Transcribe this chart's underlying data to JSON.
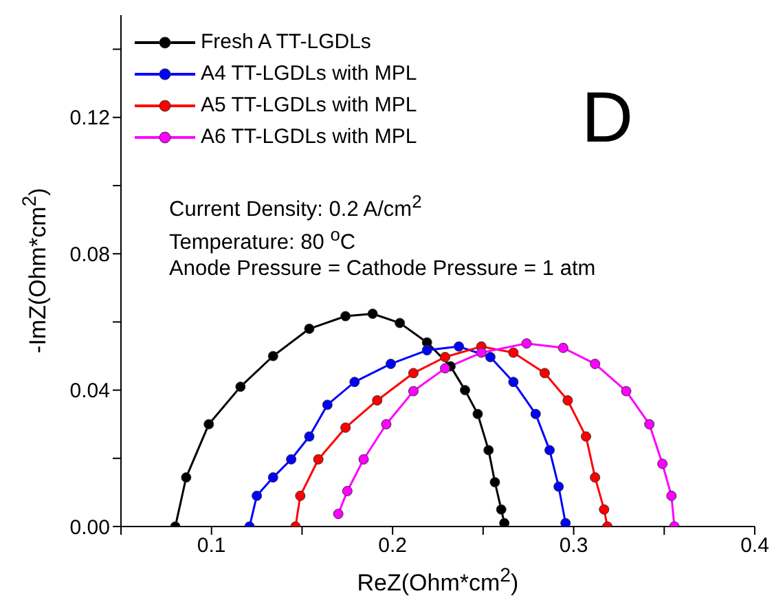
{
  "chart_data": {
    "type": "line",
    "xlabel": "ReZ(Ohm*cm$^{2}$)",
    "ylabel": "-ImZ(Ohm*cm$^{2}$)",
    "xlim": [
      0.05,
      0.4
    ],
    "xticks": [
      {
        "value": 0.05,
        "label": null
      },
      0.1,
      {
        "value": 0.15,
        "label": null
      },
      0.2,
      {
        "value": 0.25,
        "label": null
      },
      0.3,
      {
        "value": 0.35,
        "label": null
      },
      0.4
    ],
    "ylim": [
      0,
      0.15
    ],
    "yticks": [
      "0.00",
      {
        "value": 0.02,
        "label": null
      },
      0.04,
      {
        "value": 0.06,
        "label": null
      },
      0.08,
      {
        "value": 0.1,
        "label": null
      },
      0.12,
      {
        "value": 0.14,
        "label": null
      }
    ],
    "legend": "top left",
    "marker": "circle",
    "line_style": "solid",
    "grid": false,
    "annotations": [
      "D",
      "Current Density: 0.2 A/cm$^{2}$",
      "Temperature: 80 $^{o}$C",
      "Anode Pressure = Cathode Pressure = 1 atm"
    ],
    "series": [
      {
        "name": "Fresh A TT-LGDLs",
        "color": "#000000",
        "x": [
          0.08,
          0.086,
          0.0985,
          0.116,
          0.134,
          0.154,
          0.174,
          0.189,
          0.204,
          0.219,
          0.232,
          0.24,
          0.247,
          0.253,
          0.2565,
          0.26,
          0.2617
        ],
        "values": [
          0.0,
          0.0144,
          0.03,
          0.041,
          0.05,
          0.058,
          0.0617,
          0.0624,
          0.0597,
          0.054,
          0.047,
          0.04,
          0.033,
          0.0224,
          0.013,
          0.005,
          0.001
        ]
      },
      {
        "name": "A4 TT-LGDLs with MPL",
        "color": "#0000ff",
        "x": [
          0.121,
          0.125,
          0.134,
          0.144,
          0.154,
          0.164,
          0.179,
          0.199,
          0.219,
          0.2366,
          0.254,
          0.2667,
          0.279,
          0.2867,
          0.2917,
          0.2955
        ],
        "values": [
          0.0,
          0.009,
          0.0144,
          0.0197,
          0.0264,
          0.0357,
          0.0424,
          0.0477,
          0.0517,
          0.0528,
          0.0497,
          0.0424,
          0.033,
          0.0224,
          0.0117,
          0.001
        ]
      },
      {
        "name": "A5 TT-LGDLs with MPL",
        "color": "#ff0000",
        "x": [
          0.1464,
          0.149,
          0.159,
          0.174,
          0.1915,
          0.2115,
          0.229,
          0.249,
          0.2667,
          0.284,
          0.2967,
          0.3068,
          0.3118,
          0.3168,
          0.3186
        ],
        "values": [
          0.0,
          0.009,
          0.0197,
          0.029,
          0.037,
          0.045,
          0.0497,
          0.0528,
          0.051,
          0.045,
          0.037,
          0.0264,
          0.0144,
          0.005,
          0.0
        ]
      },
      {
        "name": "A6 TT-LGDLs with MPL",
        "color": "#ff00ff",
        "x": [
          0.17,
          0.175,
          0.184,
          0.1965,
          0.2115,
          0.229,
          0.249,
          0.274,
          0.2942,
          0.3118,
          0.329,
          0.3418,
          0.349,
          0.354,
          0.3556
        ],
        "values": [
          0.0037,
          0.0104,
          0.0197,
          0.03,
          0.0397,
          0.0464,
          0.051,
          0.0537,
          0.0524,
          0.0477,
          0.0397,
          0.03,
          0.0184,
          0.009,
          0.0
        ]
      }
    ]
  }
}
